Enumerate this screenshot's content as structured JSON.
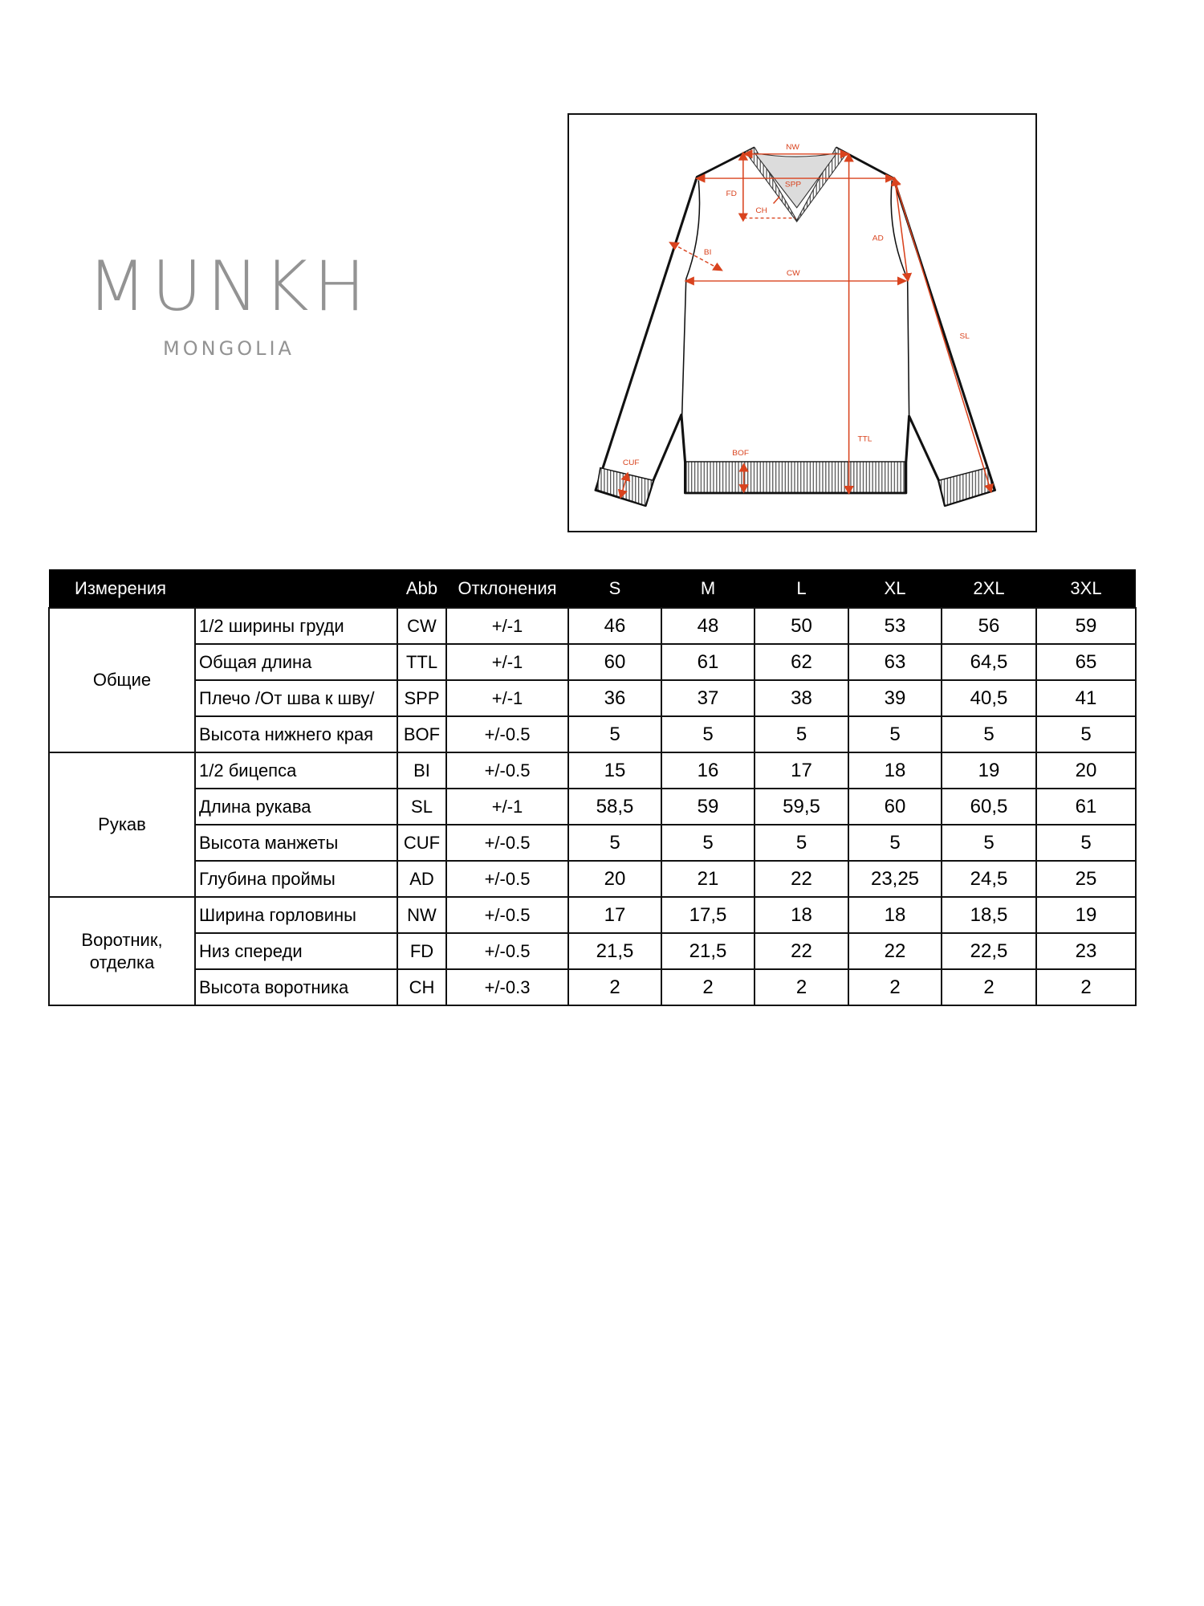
{
  "logo": {
    "brand": "MUNKH",
    "sub": "MONGOLIA",
    "color": "#939393"
  },
  "diagram": {
    "accent_color": "#d9431e",
    "labels": {
      "NW": "NW",
      "SPP": "SPP",
      "FD": "FD",
      "CH": "CH",
      "AD": "AD",
      "BI": "BI",
      "CW": "CW",
      "SL": "SL",
      "TTL": "TTL",
      "BOF": "BOF",
      "CUF": "CUF"
    }
  },
  "table": {
    "headers": [
      "Измерения",
      "",
      "Abb",
      "Отклонения",
      "S",
      "M",
      "L",
      "XL",
      "2XL",
      "3XL"
    ],
    "groups": [
      {
        "label": "Общие",
        "rows": [
          {
            "name": "1/2 ширины груди",
            "abb": "CW",
            "tol": "+/-1",
            "values": [
              "46",
              "48",
              "50",
              "53",
              "56",
              "59"
            ]
          },
          {
            "name": "Общая длина",
            "abb": "TTL",
            "tol": "+/-1",
            "values": [
              "60",
              "61",
              "62",
              "63",
              "64,5",
              "65"
            ]
          },
          {
            "name": "Плечо /От шва к шву/",
            "abb": "SPP",
            "tol": "+/-1",
            "values": [
              "36",
              "37",
              "38",
              "39",
              "40,5",
              "41"
            ]
          },
          {
            "name": "Высота нижнего края",
            "abb": "BOF",
            "tol": "+/-0.5",
            "values": [
              "5",
              "5",
              "5",
              "5",
              "5",
              "5"
            ]
          }
        ]
      },
      {
        "label": "Рукав",
        "rows": [
          {
            "name": "1/2 бицепса",
            "abb": "BI",
            "tol": "+/-0.5",
            "values": [
              "15",
              "16",
              "17",
              "18",
              "19",
              "20"
            ]
          },
          {
            "name": "Длина рукава",
            "abb": "SL",
            "tol": "+/-1",
            "values": [
              "58,5",
              "59",
              "59,5",
              "60",
              "60,5",
              "61"
            ]
          },
          {
            "name": "Высота манжеты",
            "abb": "CUF",
            "tol": "+/-0.5",
            "values": [
              "5",
              "5",
              "5",
              "5",
              "5",
              "5"
            ]
          },
          {
            "name": "Глубина проймы",
            "abb": "AD",
            "tol": "+/-0.5",
            "values": [
              "20",
              "21",
              "22",
              "23,25",
              "24,5",
              "25"
            ]
          }
        ]
      },
      {
        "label": "Воротник, отделка",
        "rows": [
          {
            "name": "Ширина горловины",
            "abb": "NW",
            "tol": "+/-0.5",
            "values": [
              "17",
              "17,5",
              "18",
              "18",
              "18,5",
              "19"
            ]
          },
          {
            "name": "Низ спереди",
            "abb": "FD",
            "tol": "+/-0.5",
            "values": [
              "21,5",
              "21,5",
              "22",
              "22",
              "22,5",
              "23"
            ]
          },
          {
            "name": "Высота воротника",
            "abb": "CH",
            "tol": "+/-0.3",
            "values": [
              "2",
              "2",
              "2",
              "2",
              "2",
              "2"
            ]
          }
        ]
      }
    ]
  }
}
